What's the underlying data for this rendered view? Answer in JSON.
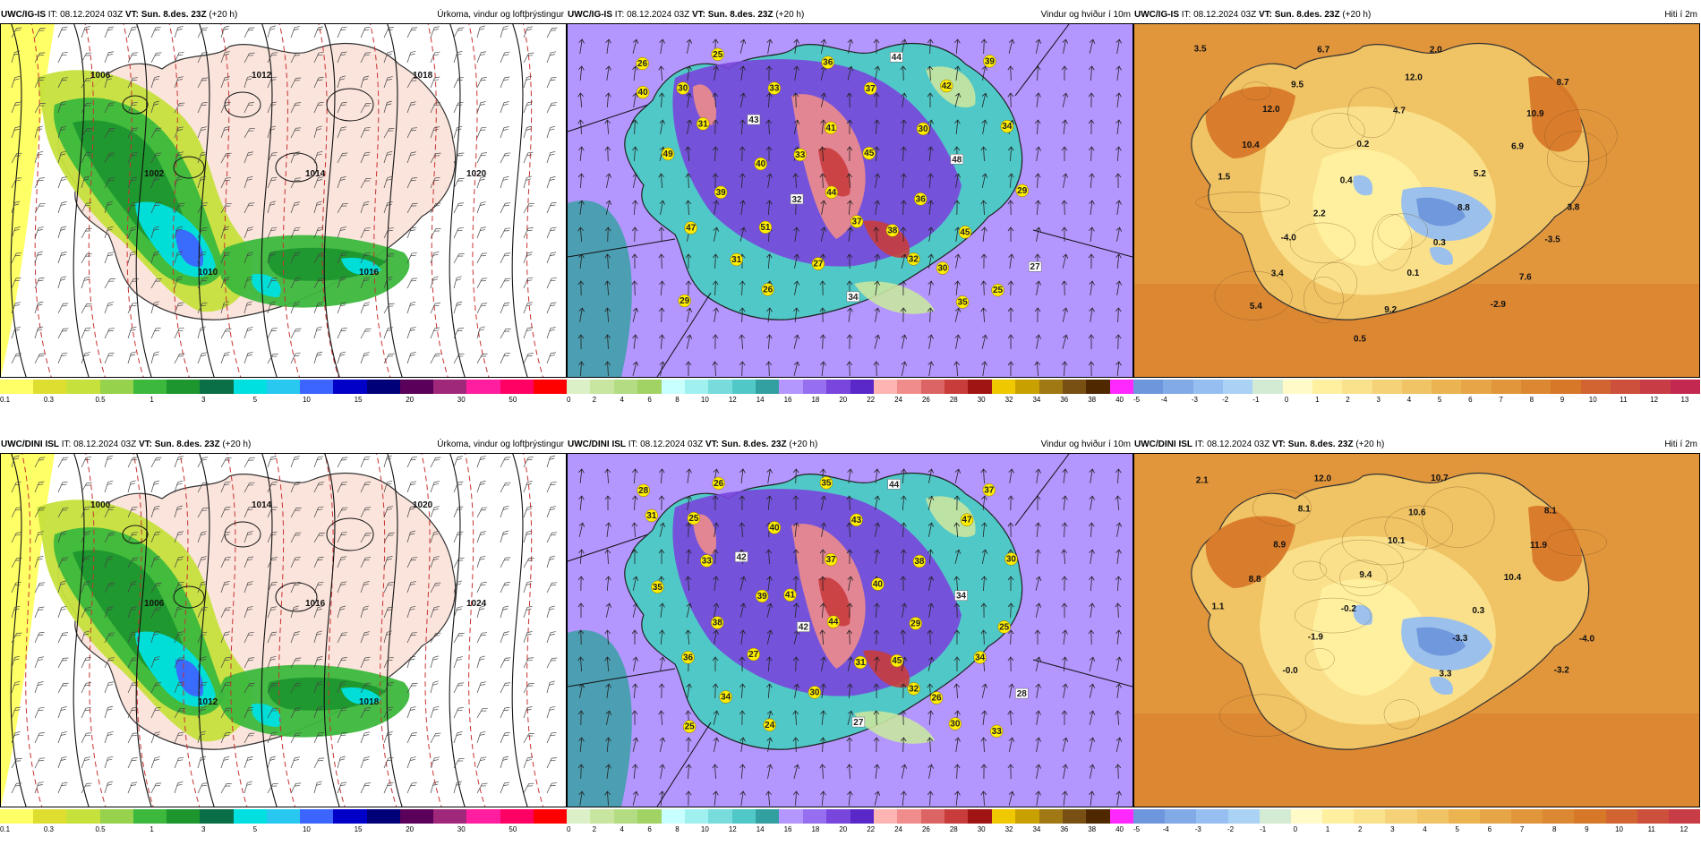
{
  "rows": [
    {
      "precip": {
        "model": "UWC/IG-IS",
        "it_label": "IT:",
        "it": "08.12.2024 03Z",
        "vt_label": "VT:",
        "vt": "Sun. 8.des. 23Z",
        "lead": "(+20 h)",
        "title": "Úrkoma, vindur og loftþrýstingur"
      },
      "wind": {
        "model": "UWC/IG-IS",
        "it_label": "IT:",
        "it": "08.12.2024 03Z",
        "vt_label": "VT:",
        "vt": "Sun. 8.des. 23Z",
        "lead": "(+20 h)",
        "title": "Vindur og hviður í 10m"
      },
      "temp": {
        "model": "UWC/IG-IS",
        "it_label": "IT:",
        "it": "08.12.2024 03Z",
        "vt_label": "VT:",
        "vt": "Sun. 8.des. 23Z",
        "lead": "(+20 h)",
        "title": "Hiti í 2m"
      }
    },
    {
      "precip": {
        "model": "UWC/DINI ISL",
        "it_label": "IT:",
        "it": "08.12.2024 03Z",
        "vt_label": "VT:",
        "vt": "Sun. 8.des. 23Z",
        "lead": "(+20 h)",
        "title": "Úrkoma, vindur og loftþrýstingur"
      },
      "wind": {
        "model": "UWC/DINI ISL",
        "it_label": "IT:",
        "it": "08.12.2024 03Z",
        "vt_label": "VT:",
        "vt": "Sun. 8.des. 23Z",
        "lead": "(+20 h)",
        "title": "Vindur og hviður í 10m"
      },
      "temp": {
        "model": "UWC/DINI ISL",
        "it_label": "IT:",
        "it": "08.12.2024 03Z",
        "vt_label": "VT:",
        "vt": "Sun. 8.des. 23Z",
        "lead": "(+20 h)",
        "title": "Hiti í 2m"
      }
    }
  ],
  "colorbars": {
    "precip": {
      "colors": [
        "#ffff66",
        "#dede30",
        "#c6e03c",
        "#96d24c",
        "#3cb83c",
        "#1e962e",
        "#0a6e46",
        "#00e0e0",
        "#28c8f0",
        "#3c64ff",
        "#0000c8",
        "#000078",
        "#5a005a",
        "#a0287a",
        "#ff1ea0",
        "#ff0064",
        "#ff0000"
      ],
      "ticks": [
        "0.1",
        "0.3",
        "0.5",
        "1",
        "3",
        "5",
        "10",
        "15",
        "20",
        "30",
        "50"
      ]
    },
    "wind": {
      "colors": [
        "#dcf0c8",
        "#c8e6a0",
        "#b4dc82",
        "#a0d264",
        "#c8ffff",
        "#a0f0f0",
        "#78dcdc",
        "#50c8c8",
        "#32a0a0",
        "#b496ff",
        "#966ef0",
        "#7846dc",
        "#5a28c8",
        "#ffb4b4",
        "#f08c8c",
        "#dc6464",
        "#c83c3c",
        "#a01414",
        "#f0c800",
        "#c8a000",
        "#a07814",
        "#785014",
        "#502800",
        "#ff28ff"
      ],
      "ticks": [
        "0",
        "2",
        "4",
        "6",
        "8",
        "10",
        "12",
        "14",
        "16",
        "18",
        "20",
        "22",
        "24",
        "26",
        "28",
        "30",
        "32",
        "34",
        "36",
        "38",
        "40"
      ]
    },
    "temp_top": {
      "colors": [
        "#6e96dc",
        "#82aae6",
        "#96bef0",
        "#aad2f5",
        "#d2ebd2",
        "#fffac8",
        "#fff0a0",
        "#fae18c",
        "#f5d278",
        "#f0c364",
        "#ebb450",
        "#e6a546",
        "#e1963c",
        "#dc8732",
        "#d77828",
        "#d26432",
        "#cd503c",
        "#c83c46",
        "#c32850"
      ],
      "ticks": [
        "-5",
        "-4",
        "-3",
        "-2",
        "-1",
        "0",
        "1",
        "2",
        "3",
        "4",
        "5",
        "6",
        "7",
        "8",
        "9",
        "10",
        "11",
        "12",
        "13"
      ]
    },
    "temp_bottom": {
      "colors": [
        "#6e96dc",
        "#82aae6",
        "#96bef0",
        "#aad2f5",
        "#d2ebd2",
        "#fffac8",
        "#fff0a0",
        "#fae18c",
        "#f5d278",
        "#f0c364",
        "#ebb450",
        "#e6a546",
        "#e1963c",
        "#dc8732",
        "#d77828",
        "#d26432",
        "#cd503c",
        "#c83c46"
      ],
      "ticks": [
        "-5",
        "-4",
        "-3",
        "-2",
        "-1",
        "0",
        "1",
        "2",
        "3",
        "4",
        "5",
        "6",
        "7",
        "8",
        "9",
        "10",
        "11",
        "12"
      ]
    }
  },
  "wind_labels": {
    "top": [
      "26",
      "25",
      "36",
      "44",
      "39",
      "30",
      "33",
      "37",
      "42",
      "40",
      "43",
      "41",
      "30",
      "34",
      "31",
      "33",
      "45",
      "48",
      "49",
      "40",
      "44",
      "36",
      "29",
      "39",
      "32",
      "38",
      "45",
      "47",
      "51",
      "37",
      "30",
      "27",
      "31",
      "27",
      "32",
      "25",
      "29",
      "26",
      "34",
      "35"
    ],
    "bottom": [
      "28",
      "26",
      "35",
      "44",
      "37",
      "25",
      "40",
      "43",
      "47",
      "31",
      "42",
      "37",
      "38",
      "30",
      "33",
      "41",
      "40",
      "34",
      "35",
      "39",
      "44",
      "29",
      "25",
      "38",
      "42",
      "45",
      "34",
      "36",
      "27",
      "31",
      "26",
      "28",
      "34",
      "30",
      "32",
      "33",
      "25",
      "24",
      "27",
      "30"
    ]
  },
  "temp_labels": {
    "top": [
      "3.5",
      "6.7",
      "2.0",
      "8.7",
      "9.5",
      "12.0",
      "10.9",
      "12.0",
      "4.7",
      "6.9",
      "10.4",
      "0.2",
      "5.2",
      "1.5",
      "0.4",
      "8.8",
      "3.8",
      "2.2",
      "0.3",
      "-3.5",
      "-4.0",
      "0.1",
      "7.6",
      "3.4",
      "9.2",
      "-2.9",
      "5.4",
      "0.5"
    ],
    "bottom": [
      "2.1",
      "12.0",
      "10.7",
      "8.1",
      "8.1",
      "10.6",
      "11.9",
      "8.9",
      "10.1",
      "10.4",
      "8.8",
      "9.4",
      "0.3",
      "1.1",
      "-0.2",
      "-3.3",
      "-4.0",
      "-1.9",
      "3.3",
      "-3.2",
      "-0.0"
    ]
  },
  "pressure_labels": {
    "top": [
      "1006",
      "1002",
      "1010",
      "1012",
      "1014",
      "1016",
      "1018",
      "1020"
    ],
    "bottom": [
      "1000",
      "1006",
      "1012",
      "1014",
      "1016",
      "1018",
      "1020",
      "1024"
    ]
  }
}
